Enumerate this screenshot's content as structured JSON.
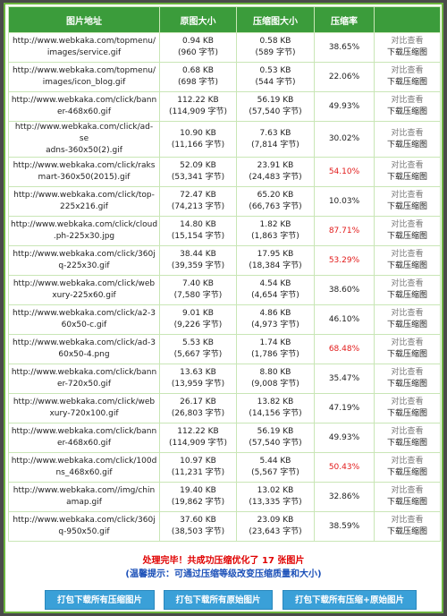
{
  "table": {
    "headers": [
      "图片地址",
      "原图大小",
      "压缩图大小",
      "压缩率",
      ""
    ],
    "rows": [
      {
        "url1": "http://www.webkaka.com/topmenu/",
        "url2": "images/service.gif",
        "orig1": "0.94 KB",
        "orig2": "(960 字节)",
        "comp1": "0.58 KB",
        "comp2": "(589 字节)",
        "rate": "38.65%",
        "high": false
      },
      {
        "url1": "http://www.webkaka.com/topmenu/",
        "url2": "images/icon_blog.gif",
        "orig1": "0.68 KB",
        "orig2": "(698 字节)",
        "comp1": "0.53 KB",
        "comp2": "(544 字节)",
        "rate": "22.06%",
        "high": false
      },
      {
        "url1": "http://www.webkaka.com/click/bann",
        "url2": "er-468x60.gif",
        "orig1": "112.22 KB",
        "orig2": "(114,909 字节)",
        "comp1": "56.19 KB",
        "comp2": "(57,540 字节)",
        "rate": "49.93%",
        "high": false
      },
      {
        "url1": "http://www.webkaka.com/click/ad-se",
        "url2": "adns-360x50(2).gif",
        "orig1": "10.90 KB",
        "orig2": "(11,166 字节)",
        "comp1": "7.63 KB",
        "comp2": "(7,814 字节)",
        "rate": "30.02%",
        "high": false
      },
      {
        "url1": "http://www.webkaka.com/click/raks",
        "url2": "mart-360x50(2015).gif",
        "orig1": "52.09 KB",
        "orig2": "(53,341 字节)",
        "comp1": "23.91 KB",
        "comp2": "(24,483 字节)",
        "rate": "54.10%",
        "high": true
      },
      {
        "url1": "http://www.webkaka.com/click/top-",
        "url2": "225x216.gif",
        "orig1": "72.47 KB",
        "orig2": "(74,213 字节)",
        "comp1": "65.20 KB",
        "comp2": "(66,763 字节)",
        "rate": "10.03%",
        "high": false
      },
      {
        "url1": "http://www.webkaka.com/click/cloud",
        "url2": ".ph-225x30.jpg",
        "orig1": "14.80 KB",
        "orig2": "(15,154 字节)",
        "comp1": "1.82 KB",
        "comp2": "(1,863 字节)",
        "rate": "87.71%",
        "high": true
      },
      {
        "url1": "http://www.webkaka.com/click/360j",
        "url2": "q-225x30.gif",
        "orig1": "38.44 KB",
        "orig2": "(39,359 字节)",
        "comp1": "17.95 KB",
        "comp2": "(18,384 字节)",
        "rate": "53.29%",
        "high": true
      },
      {
        "url1": "http://www.webkaka.com/click/web",
        "url2": "xury-225x60.gif",
        "orig1": "7.40 KB",
        "orig2": "(7,580 字节)",
        "comp1": "4.54 KB",
        "comp2": "(4,654 字节)",
        "rate": "38.60%",
        "high": false
      },
      {
        "url1": "http://www.webkaka.com/click/a2-3",
        "url2": "60x50-c.gif",
        "orig1": "9.01 KB",
        "orig2": "(9,226 字节)",
        "comp1": "4.86 KB",
        "comp2": "(4,973 字节)",
        "rate": "46.10%",
        "high": false
      },
      {
        "url1": "http://www.webkaka.com/click/ad-3",
        "url2": "60x50-4.png",
        "orig1": "5.53 KB",
        "orig2": "(5,667 字节)",
        "comp1": "1.74 KB",
        "comp2": "(1,786 字节)",
        "rate": "68.48%",
        "high": true
      },
      {
        "url1": "http://www.webkaka.com/click/bann",
        "url2": "er-720x50.gif",
        "orig1": "13.63 KB",
        "orig2": "(13,959 字节)",
        "comp1": "8.80 KB",
        "comp2": "(9,008 字节)",
        "rate": "35.47%",
        "high": false
      },
      {
        "url1": "http://www.webkaka.com/click/web",
        "url2": "xury-720x100.gif",
        "orig1": "26.17 KB",
        "orig2": "(26,803 字节)",
        "comp1": "13.82 KB",
        "comp2": "(14,156 字节)",
        "rate": "47.19%",
        "high": false
      },
      {
        "url1": "http://www.webkaka.com/click/bann",
        "url2": "er-468x60.gif",
        "orig1": "112.22 KB",
        "orig2": "(114,909 字节)",
        "comp1": "56.19 KB",
        "comp2": "(57,540 字节)",
        "rate": "49.93%",
        "high": false
      },
      {
        "url1": "http://www.webkaka.com/click/100d",
        "url2": "ns_468x60.gif",
        "orig1": "10.97 KB",
        "orig2": "(11,231 字节)",
        "comp1": "5.44 KB",
        "comp2": "(5,567 字节)",
        "rate": "50.43%",
        "high": true
      },
      {
        "url1": "http://www.webkaka.com//img/chin",
        "url2": "amap.gif",
        "orig1": "19.40 KB",
        "orig2": "(19,862 字节)",
        "comp1": "13.02 KB",
        "comp2": "(13,335 字节)",
        "rate": "32.86%",
        "high": false
      },
      {
        "url1": "http://www.webkaka.com/click/360j",
        "url2": "q-950x50.gif",
        "orig1": "37.60 KB",
        "orig2": "(38,503 字节)",
        "comp1": "23.09 KB",
        "comp2": "(23,643 字节)",
        "rate": "38.59%",
        "high": false
      }
    ],
    "action_view": "对比查看",
    "action_download": "下载压缩图"
  },
  "summary": {
    "done": "处理完毕！共成功压缩优化了 17 张图片",
    "tip": "(温馨提示：可通过压缩等级改变压缩质量和大小)"
  },
  "buttons": {
    "download_compressed": "打包下载所有压缩图片",
    "download_original": "打包下载所有原始图片",
    "download_both": "打包下载所有压缩+原始图片"
  },
  "colors": {
    "header_bg": "#3b9c3b",
    "high_rate": "#e21a1a",
    "button_bg": "#3aa0d8",
    "done_text": "#e00000",
    "tip_text": "#1a4fb8"
  }
}
